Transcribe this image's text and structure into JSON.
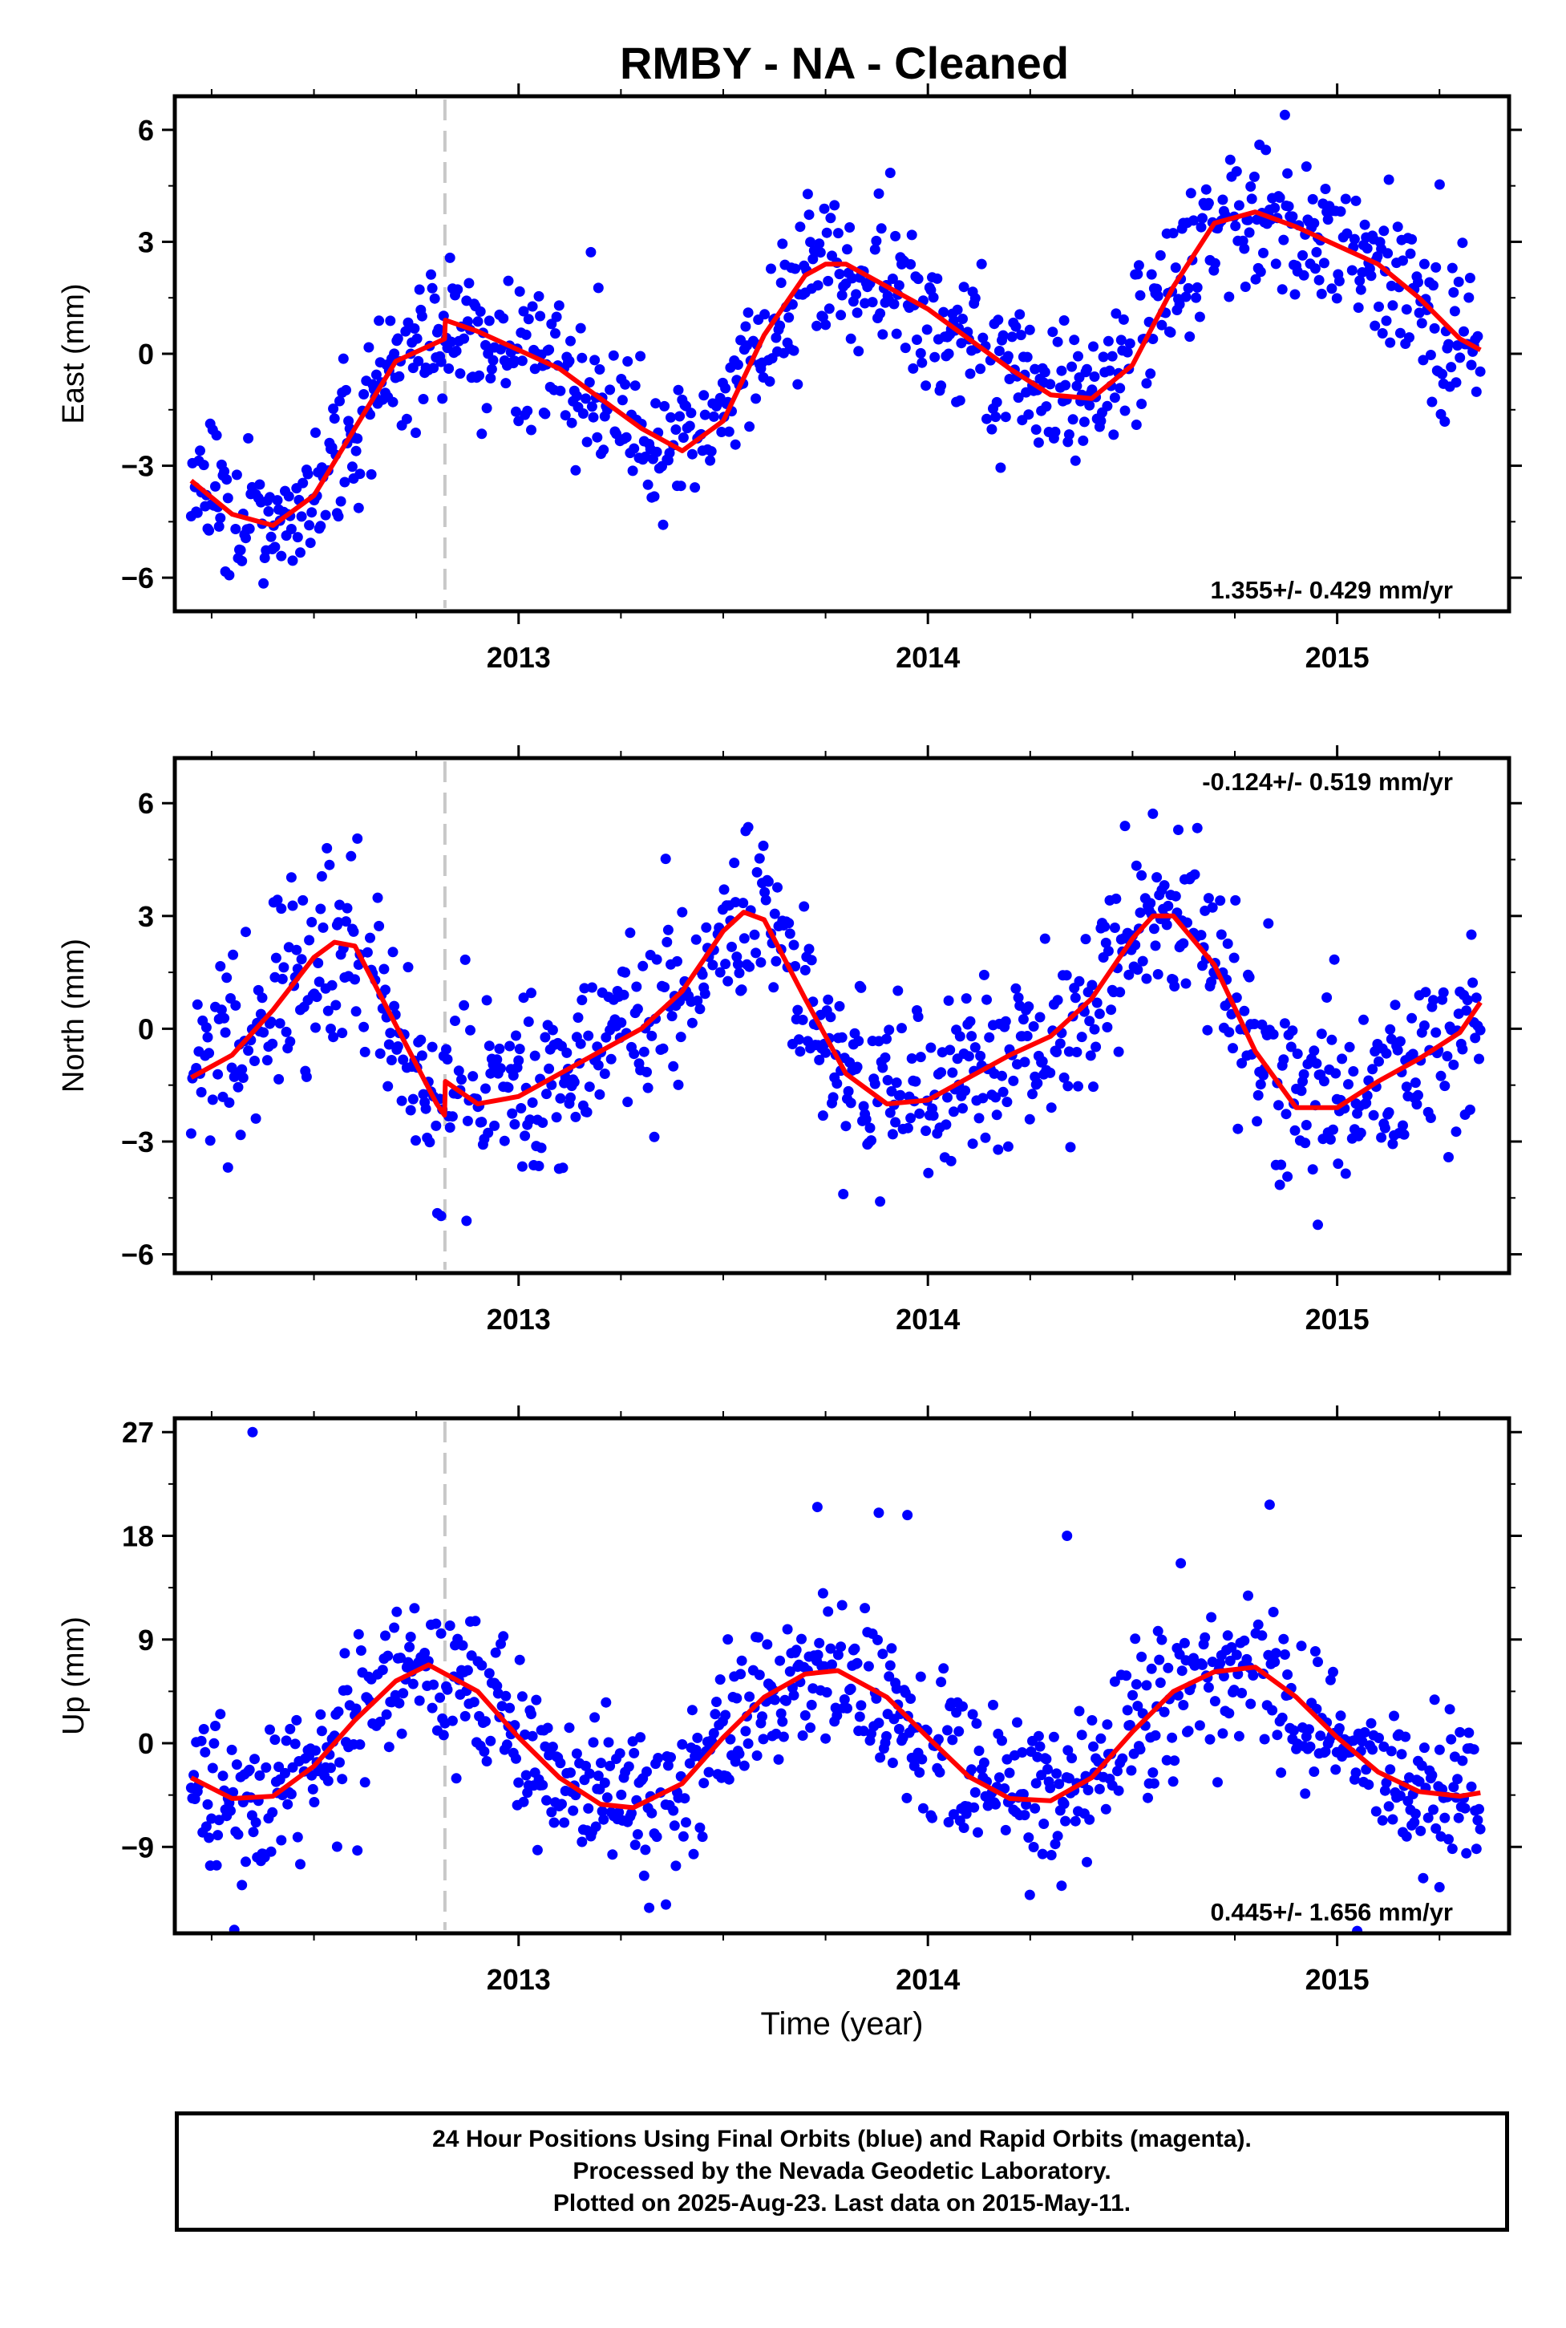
{
  "chart_data": [
    {
      "type": "scatter",
      "title": "RMBY  - NA - Cleaned",
      "ylabel": "East (mm)",
      "xlabel": "",
      "xlim": [
        2012.16,
        2015.42
      ],
      "ylim": [
        -6.9,
        6.9
      ],
      "x_ticks": [
        2013,
        2014,
        2015
      ],
      "x_tick_labels": [
        "2013",
        "2014",
        "2015"
      ],
      "y_ticks": [
        -6,
        -3,
        0,
        3,
        6
      ],
      "y_tick_labels": [
        "−6",
        "−3",
        "0",
        "3",
        "6"
      ],
      "rate_label": "1.355+/- 0.429 mm/yr",
      "rate_position": "bottom-right",
      "vline_x": 2012.82,
      "fit": {
        "x": [
          2012.2,
          2012.3,
          2012.4,
          2012.5,
          2012.6,
          2012.7,
          2012.8,
          2012.819,
          2012.821,
          2012.9,
          2013.0,
          2013.1,
          2013.2,
          2013.3,
          2013.4,
          2013.5,
          2013.6,
          2013.7,
          2013.75,
          2013.8,
          2013.9,
          2014.0,
          2014.1,
          2014.2,
          2014.3,
          2014.4,
          2014.5,
          2014.6,
          2014.7,
          2014.8,
          2014.9,
          2015.0,
          2015.1,
          2015.2,
          2015.3,
          2015.35
        ],
        "y": [
          -3.4,
          -4.3,
          -4.6,
          -3.8,
          -2.0,
          -0.2,
          0.3,
          0.4,
          0.9,
          0.6,
          0.1,
          -0.4,
          -1.2,
          -2.0,
          -2.6,
          -1.8,
          0.5,
          2.1,
          2.4,
          2.4,
          1.8,
          1.2,
          0.4,
          -0.4,
          -1.1,
          -1.2,
          -0.3,
          1.8,
          3.5,
          3.8,
          3.4,
          2.9,
          2.4,
          1.5,
          0.4,
          0.1
        ]
      },
      "scatter_model": {
        "noise": 1.0,
        "outlier_sd": 1.2,
        "seed": 11
      }
    },
    {
      "type": "scatter",
      "title": "",
      "ylabel": "North (mm)",
      "xlabel": "",
      "xlim": [
        2012.16,
        2015.42
      ],
      "ylim": [
        -6.5,
        7.2
      ],
      "x_ticks": [
        2013,
        2014,
        2015
      ],
      "x_tick_labels": [
        "2013",
        "2014",
        "2015"
      ],
      "y_ticks": [
        -6,
        -3,
        0,
        3,
        6
      ],
      "y_tick_labels": [
        "−6",
        "−3",
        "0",
        "3",
        "6"
      ],
      "rate_label": "-0.124+/- 0.519 mm/yr",
      "rate_position": "top-right",
      "vline_x": 2012.82,
      "fit": {
        "x": [
          2012.2,
          2012.3,
          2012.4,
          2012.5,
          2012.55,
          2012.6,
          2012.7,
          2012.8,
          2012.819,
          2012.821,
          2012.9,
          2013.0,
          2013.1,
          2013.2,
          2013.3,
          2013.4,
          2013.5,
          2013.55,
          2013.6,
          2013.7,
          2013.8,
          2013.9,
          2014.0,
          2014.1,
          2014.2,
          2014.3,
          2014.4,
          2014.5,
          2014.55,
          2014.6,
          2014.7,
          2014.8,
          2014.9,
          2015.0,
          2015.1,
          2015.2,
          2015.3,
          2015.35
        ],
        "y": [
          -1.3,
          -0.7,
          0.5,
          1.9,
          2.3,
          2.2,
          0.1,
          -2.0,
          -2.3,
          -1.4,
          -2.0,
          -1.8,
          -1.2,
          -0.6,
          0.0,
          1.0,
          2.6,
          3.1,
          2.9,
          0.8,
          -1.2,
          -2.0,
          -1.9,
          -1.3,
          -0.7,
          -0.2,
          0.8,
          2.4,
          3.0,
          3.0,
          1.7,
          -0.6,
          -2.1,
          -2.1,
          -1.4,
          -0.8,
          -0.1,
          0.7
        ]
      },
      "scatter_model": {
        "noise": 1.15,
        "outlier_sd": 1.4,
        "seed": 23
      }
    },
    {
      "type": "scatter",
      "title": "",
      "ylabel": "Up (mm)",
      "xlabel": "Time (year)",
      "xlim": [
        2012.16,
        2015.42
      ],
      "ylim": [
        -16.5,
        28.2
      ],
      "x_ticks": [
        2013,
        2014,
        2015
      ],
      "x_tick_labels": [
        "2013",
        "2014",
        "2015"
      ],
      "y_ticks": [
        -9,
        0,
        9,
        18,
        27
      ],
      "y_tick_labels": [
        "−9",
        "0",
        "9",
        "18",
        "27"
      ],
      "rate_label": "0.445+/- 1.656 mm/yr",
      "rate_position": "bottom-right",
      "vline_x": 2012.82,
      "fit": {
        "x": [
          2012.2,
          2012.3,
          2012.4,
          2012.5,
          2012.6,
          2012.7,
          2012.78,
          2012.9,
          2013.0,
          2013.1,
          2013.2,
          2013.28,
          2013.4,
          2013.5,
          2013.6,
          2013.7,
          2013.78,
          2013.9,
          2014.0,
          2014.1,
          2014.2,
          2014.3,
          2014.4,
          2014.5,
          2014.6,
          2014.7,
          2014.8,
          2014.9,
          2015.0,
          2015.1,
          2015.2,
          2015.3,
          2015.35
        ],
        "y": [
          -3.0,
          -4.8,
          -4.6,
          -2.0,
          2.0,
          5.4,
          6.8,
          4.5,
          0.5,
          -3.0,
          -5.3,
          -5.6,
          -3.5,
          0.5,
          4.0,
          6.0,
          6.3,
          4.0,
          0.5,
          -2.9,
          -4.8,
          -5.0,
          -3.0,
          1.0,
          4.5,
          6.2,
          6.6,
          4.0,
          0.5,
          -2.5,
          -4.2,
          -4.6,
          -4.3
        ]
      },
      "scatter_model": {
        "noise": 3.2,
        "outlier_sd": 4.5,
        "seed": 37
      },
      "outliers": [
        [
          2012.35,
          27.0
        ],
        [
          2013.73,
          20.5
        ],
        [
          2013.88,
          20.0
        ],
        [
          2013.95,
          19.8
        ],
        [
          2014.34,
          18.0
        ],
        [
          2015.25,
          -12.5
        ],
        [
          2013.36,
          -14.0
        ]
      ]
    }
  ],
  "footer": {
    "line1": "24 Hour Positions Using Final Orbits (blue) and Rapid Orbits (magenta).",
    "line2": "Processed by the Nevada Geodetic Laboratory.",
    "line3": "Plotted on 2025-Aug-23. Last data on 2015-May-11."
  },
  "colors": {
    "points": "#0000ff",
    "fit": "#ff0000",
    "vline": "#c8c8c8",
    "axes": "#000000"
  }
}
